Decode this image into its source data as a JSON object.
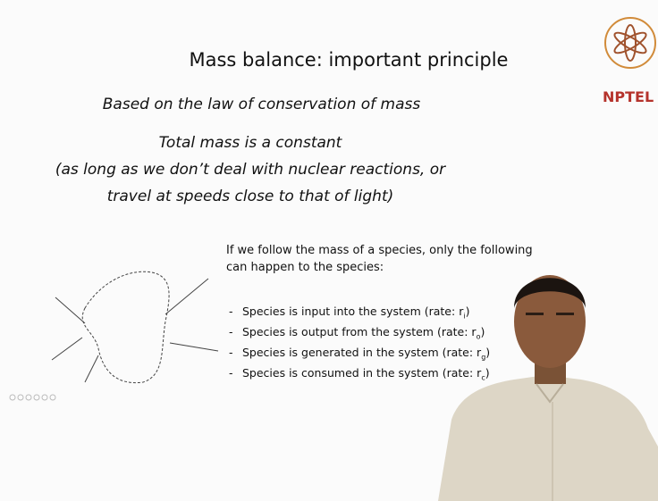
{
  "slide": {
    "title": "Mass balance: important principle",
    "subtitle": "Based on the law of conservation of mass",
    "statement": [
      "Total mass is a constant",
      "(as long as we don’t deal with nuclear reactions, or",
      "travel at speeds close to that of light)"
    ],
    "intro": [
      "If we follow the mass of a species, only the following",
      "can happen to the species:"
    ],
    "items": [
      {
        "marker": "-",
        "text": "Species is input into the system (rate: r",
        "sub": "i",
        "end": ")"
      },
      {
        "marker": "-",
        "text": "Species is output from the system (rate: r",
        "sub": "o",
        "end": ")"
      },
      {
        "marker": "-",
        "text": "Species is generated in the system (rate: r",
        "sub": "g",
        "end": ")"
      },
      {
        "marker": "-",
        "text": "Species is consumed in the system (rate: r",
        "sub": "c",
        "end": ")"
      }
    ],
    "logo": "NPTEL"
  }
}
